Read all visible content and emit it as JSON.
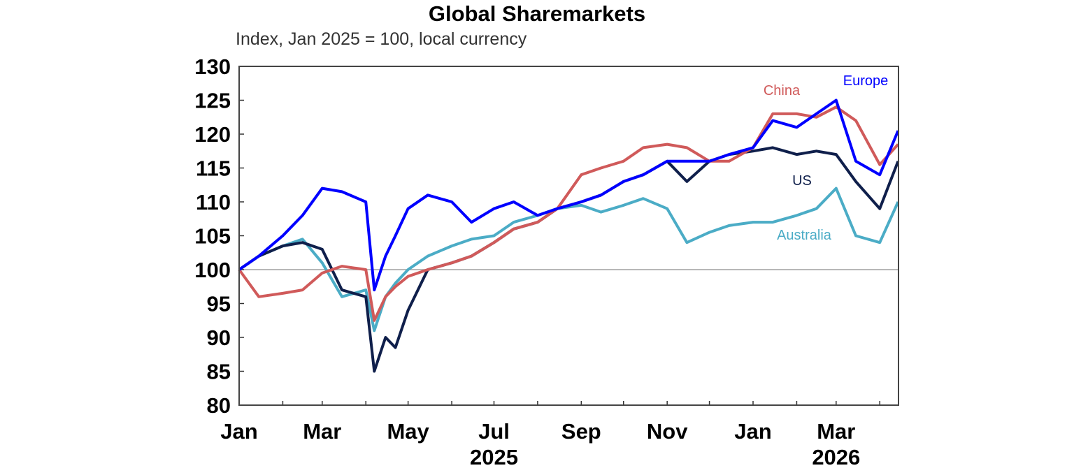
{
  "chart_data": {
    "type": "line",
    "title": "Global Sharemarkets",
    "subtitle": "Index, Jan 2025 = 100, local currency",
    "ylim": [
      80,
      130
    ],
    "yticks": [
      80,
      85,
      90,
      95,
      100,
      105,
      110,
      115,
      120,
      125,
      130
    ],
    "xlim": [
      "2025-01-01",
      "2026-04-20"
    ],
    "xtick_labels": [
      {
        "label": "Jan",
        "date": "2025-01-01"
      },
      {
        "label": "Mar",
        "date": "2025-03-01"
      },
      {
        "label": "May",
        "date": "2025-05-01"
      },
      {
        "label": "Jul",
        "date": "2025-07-01"
      },
      {
        "label": "Sep",
        "date": "2025-09-01"
      },
      {
        "label": "Nov",
        "date": "2025-11-01"
      },
      {
        "label": "Jan",
        "date": "2026-01-01"
      },
      {
        "label": "Mar",
        "date": "2026-03-01"
      }
    ],
    "year_labels": [
      {
        "label": "2025",
        "date": "2025-07-01"
      },
      {
        "label": "2026",
        "date": "2026-03-01"
      }
    ],
    "reference_line": 100,
    "grid": false,
    "x": [
      "2025-01-01",
      "2025-01-15",
      "2025-02-01",
      "2025-02-15",
      "2025-03-01",
      "2025-03-15",
      "2025-04-01",
      "2025-04-07",
      "2025-04-15",
      "2025-04-22",
      "2025-05-01",
      "2025-05-15",
      "2025-06-01",
      "2025-06-15",
      "2025-07-01",
      "2025-07-15",
      "2025-08-01",
      "2025-08-15",
      "2025-09-01",
      "2025-09-15",
      "2025-10-01",
      "2025-10-15",
      "2025-11-01",
      "2025-11-15",
      "2025-12-01",
      "2025-12-15",
      "2026-01-01",
      "2026-01-15",
      "2026-02-01",
      "2026-02-15",
      "2026-03-01",
      "2026-03-15",
      "2026-04-01",
      "2026-04-14"
    ],
    "series": [
      {
        "name": "Australia",
        "color": "#4bacc6",
        "values": [
          100,
          102,
          103.5,
          104.5,
          101,
          96,
          97,
          91,
          96,
          98,
          100,
          102,
          103.5,
          104.5,
          105,
          107,
          108,
          109,
          109.5,
          108.5,
          109.5,
          110.5,
          109,
          104,
          105.5,
          106.5,
          107,
          107,
          108,
          109,
          112,
          105,
          104,
          110
        ]
      },
      {
        "name": "US",
        "color": "#0f1f4b",
        "values": [
          100,
          102,
          103.5,
          104,
          103,
          97,
          96,
          85,
          90,
          88.5,
          94,
          100,
          101,
          102,
          104,
          106,
          107,
          109,
          110,
          111,
          113,
          114,
          116,
          113,
          116,
          117,
          117.5,
          118,
          117,
          117.5,
          117,
          113,
          109,
          116
        ]
      },
      {
        "name": "China",
        "color": "#d05a5a",
        "values": [
          100,
          96,
          96.5,
          97,
          99.5,
          100.5,
          100,
          92.5,
          96,
          97.5,
          99,
          100,
          101,
          102,
          104,
          106,
          107,
          109,
          114,
          115,
          116,
          118,
          118.5,
          118,
          116,
          116,
          118,
          123,
          123,
          122.5,
          124,
          122,
          115.5,
          118.5
        ]
      },
      {
        "name": "Europe",
        "color": "#0000ff",
        "values": [
          100,
          102,
          105,
          108,
          112,
          111.5,
          110,
          97,
          102,
          105,
          109,
          111,
          110,
          107,
          109,
          110,
          108,
          109,
          110,
          111,
          113,
          114,
          116,
          116,
          116,
          117,
          118,
          122,
          121,
          123,
          125,
          116,
          114,
          120.5
        ]
      }
    ],
    "series_labels": [
      {
        "text": "China",
        "color": "#d05a5a"
      },
      {
        "text": "Europe",
        "color": "#0000ff"
      },
      {
        "text": "US",
        "color": "#0f1f4b"
      },
      {
        "text": "Australia",
        "color": "#4bacc6"
      }
    ]
  }
}
